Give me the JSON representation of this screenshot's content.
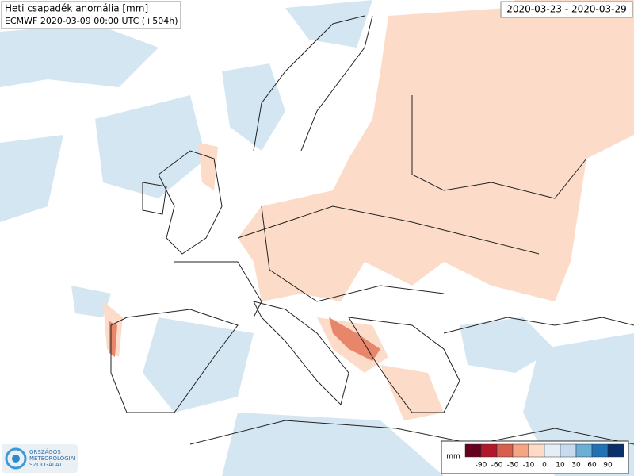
{
  "header": {
    "title": "Heti csapadék anomália [mm]",
    "subtitle": "ECMWF 2020-03-09 00:00 UTC (+504h)",
    "period": "2020-03-23 - 2020-03-29"
  },
  "legend": {
    "unit": "mm",
    "colors": [
      "#67001f",
      "#b2182b",
      "#d6604d",
      "#f4a582",
      "#fddbc7",
      "#e4eef5",
      "#c6dbef",
      "#6baed6",
      "#2171b5",
      "#08306b"
    ],
    "ticks": [
      -90,
      -60,
      -30,
      -10,
      0,
      10,
      30,
      60,
      90
    ]
  },
  "logo": {
    "lines": [
      "ORSZÁGOS",
      "METEOROLÓGIAI",
      "SZOLGÁLAT"
    ]
  }
}
